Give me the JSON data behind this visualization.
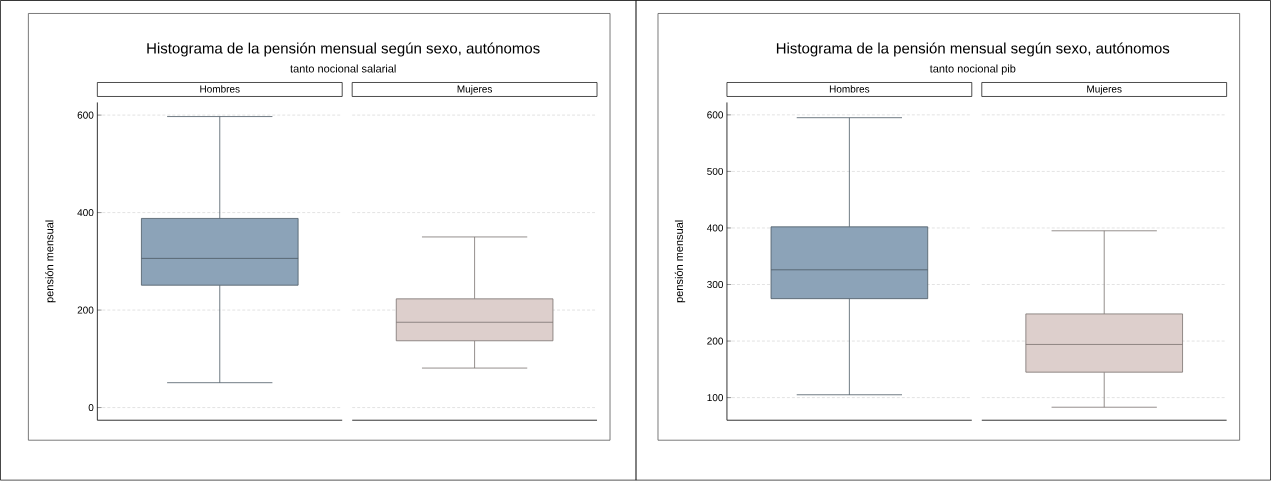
{
  "chart_data": [
    {
      "type": "box",
      "title": "Histograma de la pensión mensual según sexo, autónomos",
      "subtitle": "tanto nocional salarial",
      "ylabel": "pensión mensual",
      "categories": [
        "Hombres",
        "Mujeres"
      ],
      "boxes": [
        {
          "low": 51,
          "q1": 251,
          "median": 306,
          "q3": 388,
          "high": 597
        },
        {
          "low": 81,
          "q1": 137,
          "median": 175,
          "q3": 223,
          "high": 350
        }
      ],
      "colors": [
        "#8ca3b8",
        "#ddcfcc"
      ],
      "ylim": [
        -26,
        626
      ],
      "yticks": [
        0,
        200,
        400,
        600
      ],
      "grid": "y"
    },
    {
      "type": "box",
      "title": "Histograma de la pensión mensual según sexo, autónomos",
      "subtitle": "tanto nocional pib",
      "ylabel": "pensión mensual",
      "categories": [
        "Hombres",
        "Mujeres"
      ],
      "boxes": [
        {
          "low": 105,
          "q1": 275,
          "median": 326,
          "q3": 402,
          "high": 595
        },
        {
          "low": 83,
          "q1": 145,
          "median": 194,
          "q3": 248,
          "high": 395
        }
      ],
      "colors": [
        "#8ca3b8",
        "#ddcfcc"
      ],
      "ylim": [
        60,
        622
      ],
      "yticks": [
        100,
        200,
        300,
        400,
        500,
        600
      ],
      "grid": "y"
    }
  ]
}
